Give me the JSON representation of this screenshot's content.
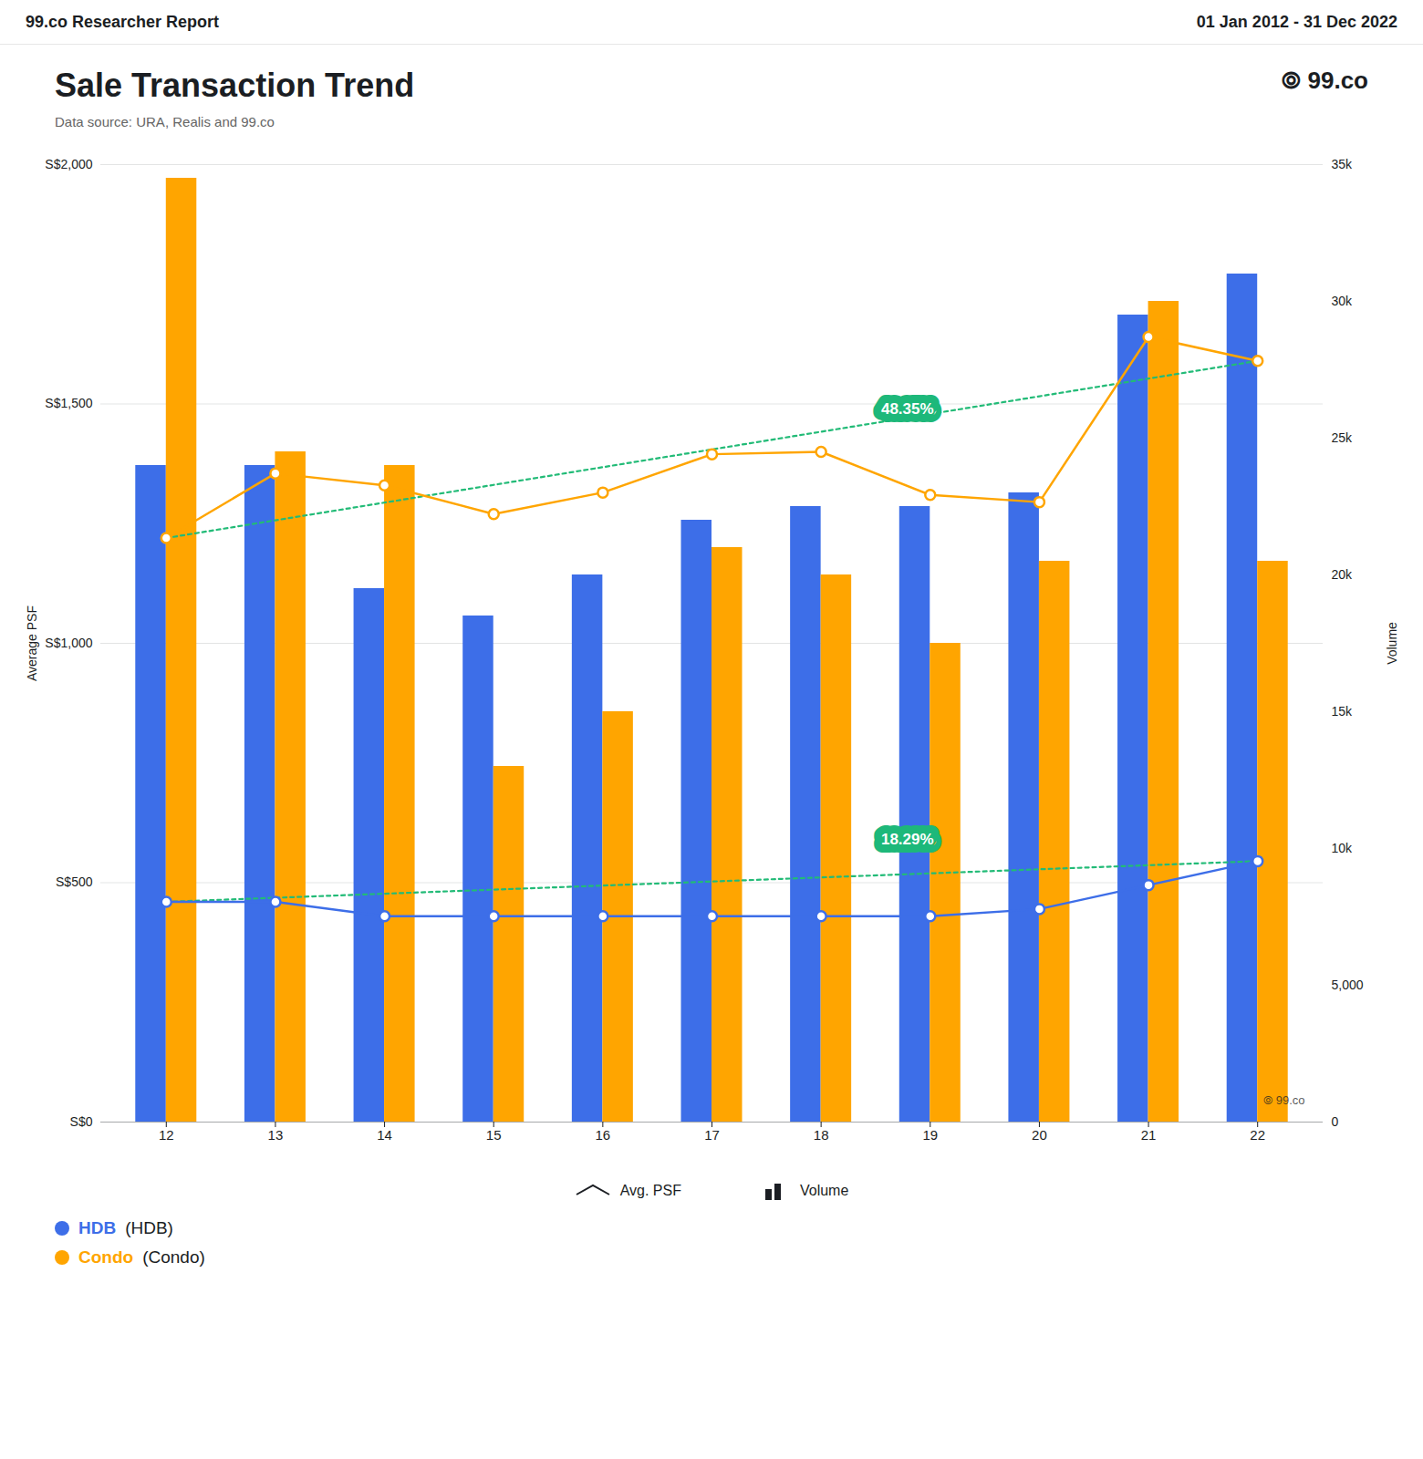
{
  "chart_data": {
    "type": "bar",
    "header_left": "99.co Researcher Report",
    "header_right": "01 Jan 2012 - 31 Dec 2022",
    "title": "Sale Transaction Trend",
    "subtitle": "Data source: URA, Realis and 99.co",
    "logo_icon": "⦾",
    "logo": "99.co",
    "watermark": "⦾ 99.co",
    "categories": [
      "12",
      "13",
      "14",
      "15",
      "16",
      "17",
      "18",
      "19",
      "20",
      "21",
      "22"
    ],
    "ylabel": "Average PSF",
    "ylim": [
      0,
      2000
    ],
    "yticks": [
      {
        "value": 0,
        "label": "S$0"
      },
      {
        "value": 500,
        "label": "S$500"
      },
      {
        "value": 1000,
        "label": "S$1,000"
      },
      {
        "value": 1500,
        "label": "S$1,500"
      },
      {
        "value": 2000,
        "label": "S$2,000"
      }
    ],
    "y2label": "Volume",
    "y2lim": [
      0,
      35000
    ],
    "y2ticks": [
      0,
      {
        "value": 5000,
        "label": "5,000"
      },
      {
        "value": 10000,
        "label": "10k"
      },
      {
        "value": 15000,
        "label": "15k"
      },
      {
        "value": 20000,
        "label": "20k"
      },
      {
        "value": 25000,
        "label": "25k"
      },
      {
        "value": 30000,
        "label": "30k"
      },
      {
        "value": 35000,
        "label": "35k"
      }
    ],
    "grid": true,
    "legend": "bottom",
    "legend_groups": [
      {
        "label": "Avg. PSF",
        "type": "line"
      },
      {
        "label": "Volume",
        "type": "bar"
      }
    ],
    "series": [
      {
        "name": "HDB",
        "note": "(HDB)",
        "type": "bar",
        "axis": "y2",
        "color": "#3D6EE8",
        "values": [
          24000,
          24000,
          19500,
          18500,
          20000,
          22000,
          22500,
          22500,
          23000,
          29500,
          31000
        ]
      },
      {
        "name": "Condo",
        "note": "(Condo)",
        "type": "bar",
        "axis": "y2",
        "color": "#FFA500",
        "values": [
          34500,
          24500,
          24000,
          13000,
          15000,
          21000,
          20000,
          17500,
          20500,
          30000,
          20500
        ]
      },
      {
        "name": "HDB",
        "type": "line",
        "marker": "circle",
        "color": "#3D6EE8",
        "values": [
          460,
          460,
          430,
          430,
          430,
          430,
          430,
          430,
          445,
          495,
          545
        ]
      },
      {
        "name": "Condo",
        "type": "line",
        "marker": "circle",
        "color": "#FFA500",
        "values": [
          1220,
          1355,
          1330,
          1270,
          1315,
          1395,
          1400,
          1310,
          1295,
          1640,
          1590
        ]
      },
      {
        "type": "line",
        "line_style": "dotted",
        "color": "#22bb77",
        "values": [
          460,
          468.5,
          477,
          485.5,
          494,
          502.5,
          511,
          519.5,
          528,
          536.5,
          545
        ]
      },
      {
        "type": "line",
        "line_style": "dotted",
        "color": "#22bb77",
        "values": [
          1220,
          1257,
          1294,
          1331,
          1368,
          1405,
          1442,
          1479,
          1516,
          1553,
          1590
        ]
      }
    ],
    "annotations": [
      {
        "text": "18.29%",
        "x": "18",
        "y": 590,
        "color": "#1db87a"
      },
      {
        "text": "48.35%",
        "x": "18",
        "y": 1490,
        "color": "#1db87a"
      }
    ]
  }
}
